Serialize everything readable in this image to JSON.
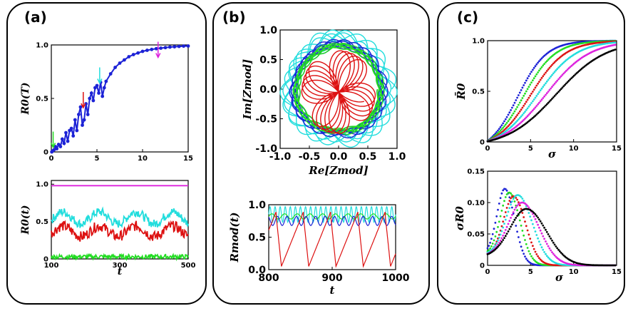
{
  "panels": {
    "a": "(a)",
    "b": "(b)",
    "c": "(c)"
  },
  "chart_data": [
    {
      "id": "a_top",
      "type": "scatter",
      "xlabel": "",
      "ylabel": "R0(T)",
      "xlim": [
        0,
        15
      ],
      "ylim": [
        0,
        1.0
      ],
      "xticks": [
        "0",
        "5",
        "10",
        "15"
      ],
      "yticks": [
        "0",
        "0.5",
        "1.0"
      ],
      "xtick_values": [
        0,
        5,
        10,
        15
      ],
      "ytick_values": [
        0,
        0.5,
        1.0
      ],
      "series": [
        {
          "color": "#1c22d6",
          "x": [
            0.05,
            0.15,
            0.3,
            0.45,
            0.6,
            0.8,
            1.0,
            1.2,
            1.4,
            1.6,
            1.8,
            2.0,
            2.2,
            2.4,
            2.6,
            2.8,
            3.0,
            3.2,
            3.4,
            3.6,
            3.8,
            4.0,
            4.2,
            4.4,
            4.6,
            4.8,
            5.0,
            5.2,
            5.4,
            5.6,
            5.8,
            6.0,
            6.5,
            7.0,
            7.5,
            8.0,
            8.5,
            9.0,
            9.5,
            10.0,
            10.5,
            11.0,
            11.5,
            12.0,
            12.5,
            13.0,
            13.5,
            14.0,
            14.5,
            15.0
          ],
          "y": [
            0.0,
            0.01,
            0.02,
            0.05,
            0.03,
            0.07,
            0.05,
            0.12,
            0.08,
            0.18,
            0.1,
            0.2,
            0.22,
            0.15,
            0.3,
            0.2,
            0.35,
            0.42,
            0.25,
            0.3,
            0.45,
            0.35,
            0.5,
            0.55,
            0.48,
            0.6,
            0.62,
            0.55,
            0.65,
            0.52,
            0.6,
            0.66,
            0.73,
            0.79,
            0.83,
            0.86,
            0.89,
            0.91,
            0.925,
            0.94,
            0.95,
            0.958,
            0.965,
            0.97,
            0.975,
            0.98,
            0.983,
            0.986,
            0.989,
            0.99
          ]
        }
      ],
      "annotations": [
        {
          "type": "arrow",
          "x": 0.2,
          "y": 0.03,
          "color": "#22dd22"
        },
        {
          "type": "arrow",
          "x": 3.5,
          "y": 0.4,
          "color": "#dd1111"
        },
        {
          "type": "arrow",
          "x": 5.3,
          "y": 0.63,
          "color": "#22dddd"
        },
        {
          "type": "arrow",
          "x": 11.7,
          "y": 0.87,
          "color": "#dd22dd"
        }
      ]
    },
    {
      "id": "a_bottom",
      "type": "line",
      "xlabel": "t",
      "ylabel": "R0(t)",
      "xlim": [
        100,
        500
      ],
      "ylim": [
        0,
        1.05
      ],
      "xticks": [
        "100",
        "300",
        "500"
      ],
      "yticks": [
        "0",
        "0.5",
        "1.0"
      ],
      "xtick_values": [
        100,
        300,
        500
      ],
      "ytick_values": [
        0,
        0.5,
        1.0
      ],
      "series": [
        {
          "color": "#dd22dd",
          "base": 0.98,
          "amp": 0.0,
          "noise": 0.0
        },
        {
          "color": "#22dddd",
          "base": 0.55,
          "amp": 0.08,
          "noise": 0.06
        },
        {
          "color": "#dd1111",
          "base": 0.37,
          "amp": 0.07,
          "noise": 0.07
        },
        {
          "color": "#22dd22",
          "base": 0.03,
          "amp": 0.0,
          "noise": 0.03
        }
      ]
    },
    {
      "id": "b_top",
      "type": "line",
      "xlabel": "Re[Zmod]",
      "ylabel": "Im[Zmod]",
      "xlim": [
        -1.0,
        1.0
      ],
      "ylim": [
        -1.0,
        1.0
      ],
      "xticks": [
        "-1.0",
        "-0.5",
        "0.0",
        "0.5",
        "1.0"
      ],
      "yticks": [
        "-1.0",
        "-0.5",
        "0.0",
        "0.5",
        "1.0"
      ],
      "xtick_values": [
        -1.0,
        -0.5,
        0.0,
        0.5,
        1.0
      ],
      "ytick_values": [
        -1.0,
        -0.5,
        0.0,
        0.5,
        1.0
      ],
      "series": [
        {
          "color": "#22dddd",
          "kind": "ring",
          "r": 0.85,
          "wobble": 0.1
        },
        {
          "color": "#1c22d6",
          "kind": "ring",
          "r": 0.75,
          "wobble": 0.06
        },
        {
          "color": "#22dd22",
          "kind": "ring",
          "r": 0.72,
          "wobble": 0.04
        },
        {
          "color": "#dd1111",
          "kind": "petals",
          "r": 0.7
        }
      ]
    },
    {
      "id": "b_bottom",
      "type": "line",
      "xlabel": "t",
      "ylabel": "Rmod(t)",
      "xlim": [
        800,
        1000
      ],
      "ylim": [
        0,
        1.0
      ],
      "xticks": [
        "800",
        "900",
        "1000"
      ],
      "yticks": [
        "0.0",
        "0.5",
        "1.0"
      ],
      "xtick_values": [
        800,
        900,
        1000
      ],
      "ytick_values": [
        0,
        0.5,
        1.0
      ],
      "series": [
        {
          "color": "#22dddd",
          "base": 0.85,
          "amp": 0.12,
          "period": 8
        },
        {
          "color": "#22dd22",
          "base": 0.82,
          "amp": 0.04,
          "period": 20
        },
        {
          "color": "#1c22d6",
          "base": 0.75,
          "amp": 0.07,
          "period": 15
        },
        {
          "color": "#dd1111",
          "kind": "relax",
          "period": 43,
          "start": 812
        }
      ]
    },
    {
      "id": "c_top",
      "type": "scatter",
      "xlabel": "σ",
      "ylabel": "R̄0",
      "xlim": [
        0,
        15
      ],
      "ylim": [
        0,
        1.0
      ],
      "xticks": [
        "0",
        "5",
        "10",
        "15"
      ],
      "yticks": [
        "0",
        "0.5",
        "1.0"
      ],
      "xtick_values": [
        0,
        5,
        10,
        15
      ],
      "ytick_values": [
        0,
        0.5,
        1.0
      ],
      "series": [
        {
          "color": "#1c22d6",
          "mid": 3.5,
          "k": 0.6
        },
        {
          "color": "#22dd22",
          "mid": 4.2,
          "k": 0.55
        },
        {
          "color": "#dd1111",
          "mid": 5.0,
          "k": 0.5
        },
        {
          "color": "#22dddd",
          "mid": 5.8,
          "k": 0.45
        },
        {
          "color": "#dd22dd",
          "mid": 6.8,
          "k": 0.4
        },
        {
          "color": "#000000",
          "mid": 8.0,
          "k": 0.35
        }
      ]
    },
    {
      "id": "c_bottom",
      "type": "scatter",
      "xlabel": "σ",
      "ylabel": "σR0",
      "xlim": [
        0,
        15
      ],
      "ylim": [
        0,
        0.15
      ],
      "xticks": [
        "0",
        "5",
        "10",
        "15"
      ],
      "yticks": [
        "0",
        "0.05",
        "0.10",
        "0.15"
      ],
      "xtick_values": [
        0,
        5,
        10,
        15
      ],
      "ytick_values": [
        0,
        0.05,
        0.1,
        0.15
      ],
      "series": [
        {
          "color": "#1c22d6",
          "peak": 0.122,
          "mu": 2.0,
          "w": 1.6
        },
        {
          "color": "#22dd22",
          "peak": 0.116,
          "mu": 2.5,
          "w": 1.8
        },
        {
          "color": "#dd1111",
          "peak": 0.11,
          "mu": 3.0,
          "w": 2.0
        },
        {
          "color": "#22dddd",
          "peak": 0.112,
          "mu": 3.5,
          "w": 2.4
        },
        {
          "color": "#dd22dd",
          "peak": 0.1,
          "mu": 4.0,
          "w": 2.8
        },
        {
          "color": "#000000",
          "peak": 0.09,
          "mu": 4.5,
          "w": 3.3
        }
      ]
    }
  ]
}
